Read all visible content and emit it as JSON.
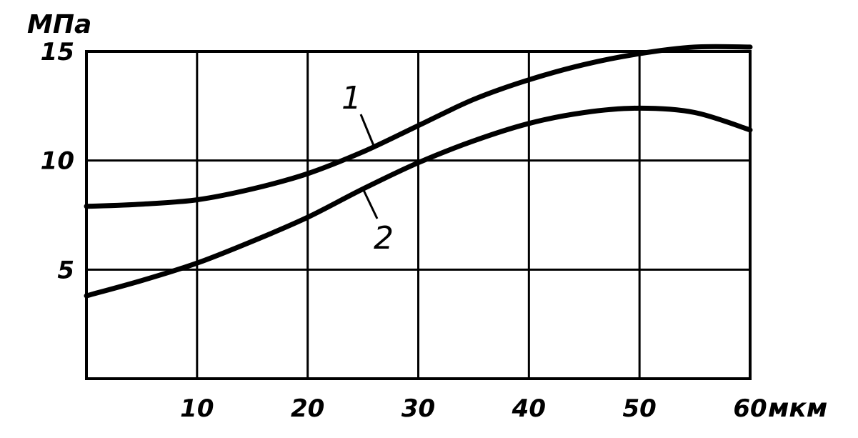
{
  "chart_data": {
    "type": "line",
    "xlabel": "мкм",
    "ylabel": "МПа",
    "xlim": [
      0,
      60
    ],
    "ylim": [
      0,
      15
    ],
    "x_ticks": [
      "10",
      "20",
      "30",
      "40",
      "50",
      "60"
    ],
    "y_ticks": [
      "5",
      "10",
      "15"
    ],
    "grid": true,
    "series": [
      {
        "name": "1",
        "x": [
          0,
          5,
          10,
          15,
          20,
          25,
          30,
          35,
          40,
          45,
          50,
          55,
          60
        ],
        "y": [
          7.9,
          8.0,
          8.2,
          8.7,
          9.4,
          10.4,
          11.6,
          12.8,
          13.7,
          14.4,
          14.9,
          15.2,
          15.2
        ]
      },
      {
        "name": "2",
        "x": [
          0,
          5,
          10,
          15,
          20,
          25,
          30,
          35,
          40,
          45,
          50,
          55,
          60
        ],
        "y": [
          3.8,
          4.5,
          5.3,
          6.3,
          7.4,
          8.7,
          9.9,
          10.9,
          11.7,
          12.2,
          12.4,
          12.2,
          11.4
        ]
      }
    ]
  }
}
